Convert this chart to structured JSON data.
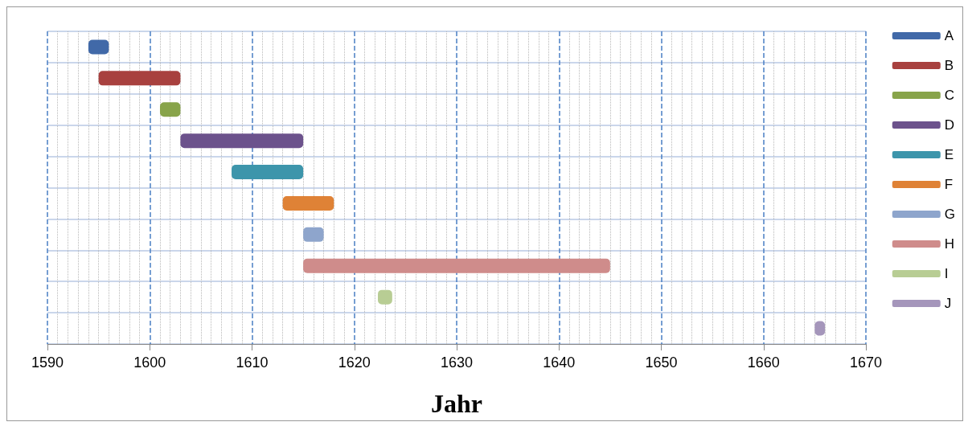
{
  "chart_data": {
    "type": "bar",
    "orientation": "horizontal",
    "xlabel": "Jahr",
    "xlim": [
      1590,
      1670
    ],
    "xticks": [
      1590,
      1600,
      1610,
      1620,
      1630,
      1640,
      1650,
      1660,
      1670
    ],
    "grid": true,
    "legend": "right",
    "categories": [
      null,
      null,
      null,
      null,
      null,
      null,
      null,
      null,
      null,
      null
    ],
    "series": [
      {
        "name": "A",
        "color": "#4169a8",
        "base": [
          1594,
          null,
          null,
          null,
          null,
          null,
          null,
          null,
          null,
          null
        ],
        "values": [
          2,
          null,
          null,
          null,
          null,
          null,
          null,
          null,
          null,
          null
        ]
      },
      {
        "name": "B",
        "color": "#a8413f",
        "base": [
          null,
          1595,
          null,
          null,
          null,
          null,
          null,
          null,
          null,
          null
        ],
        "values": [
          null,
          8,
          null,
          null,
          null,
          null,
          null,
          null,
          null,
          null
        ]
      },
      {
        "name": "C",
        "color": "#88a44a",
        "base": [
          null,
          null,
          1601,
          null,
          null,
          null,
          null,
          null,
          null,
          null
        ],
        "values": [
          null,
          null,
          2,
          null,
          null,
          null,
          null,
          null,
          null,
          null
        ]
      },
      {
        "name": "D",
        "color": "#6c528c",
        "base": [
          null,
          null,
          null,
          1603,
          null,
          null,
          null,
          null,
          null,
          null
        ],
        "values": [
          null,
          null,
          null,
          12,
          null,
          null,
          null,
          null,
          null,
          null
        ]
      },
      {
        "name": "E",
        "color": "#3d95ab",
        "base": [
          null,
          null,
          null,
          null,
          1608,
          null,
          null,
          null,
          null,
          null
        ],
        "values": [
          null,
          null,
          null,
          null,
          7,
          null,
          null,
          null,
          null,
          null
        ]
      },
      {
        "name": "F",
        "color": "#df8236",
        "base": [
          null,
          null,
          null,
          null,
          null,
          1613,
          null,
          null,
          null,
          null
        ],
        "values": [
          null,
          null,
          null,
          null,
          null,
          5,
          null,
          null,
          null,
          null
        ]
      },
      {
        "name": "G",
        "color": "#8ea5cc",
        "base": [
          null,
          null,
          null,
          null,
          null,
          null,
          1615,
          null,
          null,
          null
        ],
        "values": [
          null,
          null,
          null,
          null,
          null,
          null,
          2,
          null,
          null,
          null
        ]
      },
      {
        "name": "H",
        "color": "#cf8c8b",
        "base": [
          null,
          null,
          null,
          null,
          null,
          null,
          null,
          1615,
          null,
          null
        ],
        "values": [
          null,
          null,
          null,
          null,
          null,
          null,
          null,
          30,
          null,
          null
        ]
      },
      {
        "name": "I",
        "color": "#b8cd94",
        "base": [
          null,
          null,
          null,
          null,
          null,
          null,
          null,
          null,
          1622.3,
          null
        ],
        "values": [
          null,
          null,
          null,
          null,
          null,
          null,
          null,
          null,
          1.4,
          null
        ]
      },
      {
        "name": "J",
        "color": "#a596bb",
        "base": [
          null,
          null,
          null,
          null,
          null,
          null,
          null,
          null,
          null,
          1665
        ],
        "values": [
          null,
          null,
          null,
          null,
          null,
          null,
          null,
          null,
          null,
          1
        ]
      }
    ]
  }
}
